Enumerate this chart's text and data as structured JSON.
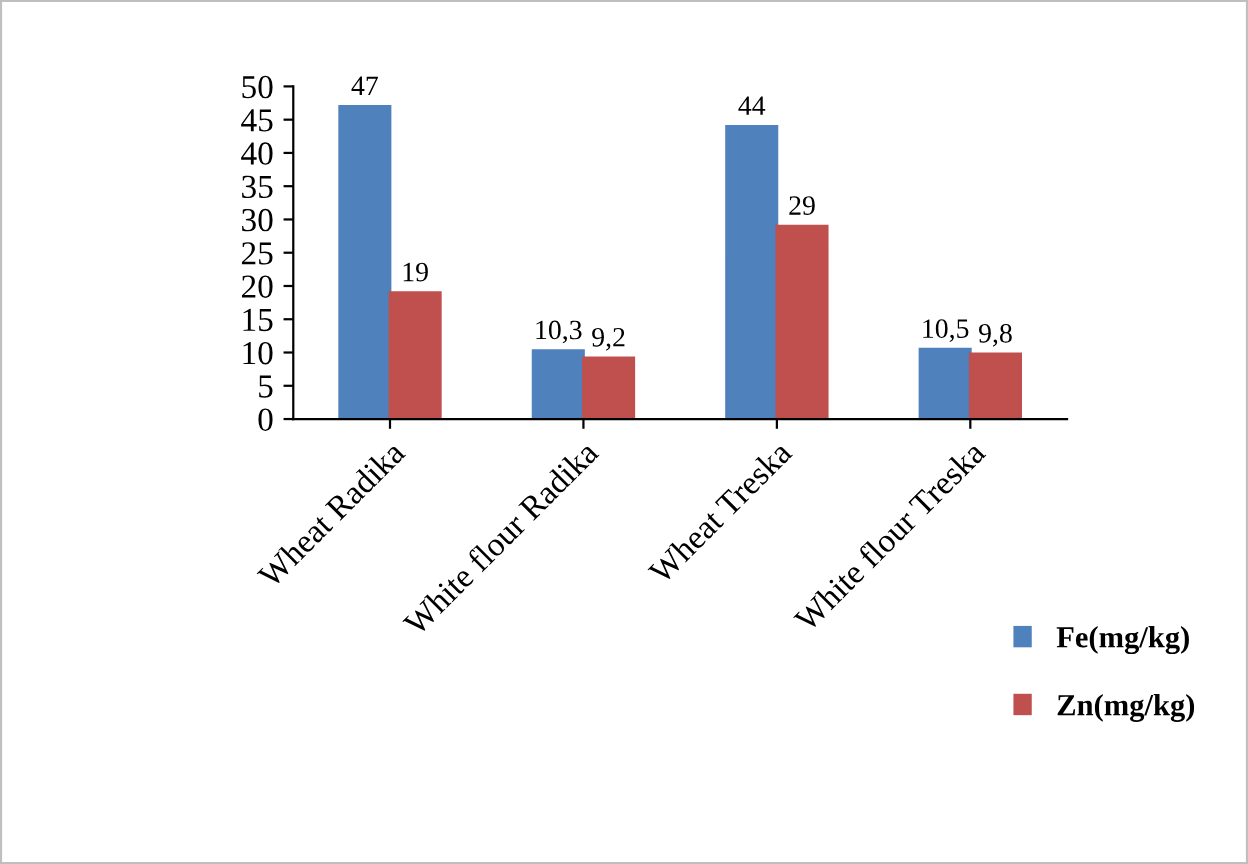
{
  "chart_data": {
    "type": "bar",
    "categories": [
      "Wheat Radika",
      "White flour Radika",
      "Wheat Treska",
      "White flour Treska"
    ],
    "series": [
      {
        "name": "Fe(mg/kg)",
        "color": "#4f81bd",
        "values": [
          47,
          10.3,
          44,
          10.5
        ],
        "value_labels": [
          "47",
          "10,3",
          "44",
          "10,5"
        ]
      },
      {
        "name": "Zn(mg/kg)",
        "color": "#c0504d",
        "values": [
          19,
          9.2,
          29,
          9.8
        ],
        "value_labels": [
          "19",
          "9,2",
          "29",
          "9,8"
        ]
      }
    ],
    "ylim": [
      0,
      50
    ],
    "yticks": [
      0,
      5,
      10,
      15,
      20,
      25,
      30,
      35,
      40,
      45,
      50
    ],
    "grid": false,
    "legend": "right"
  }
}
